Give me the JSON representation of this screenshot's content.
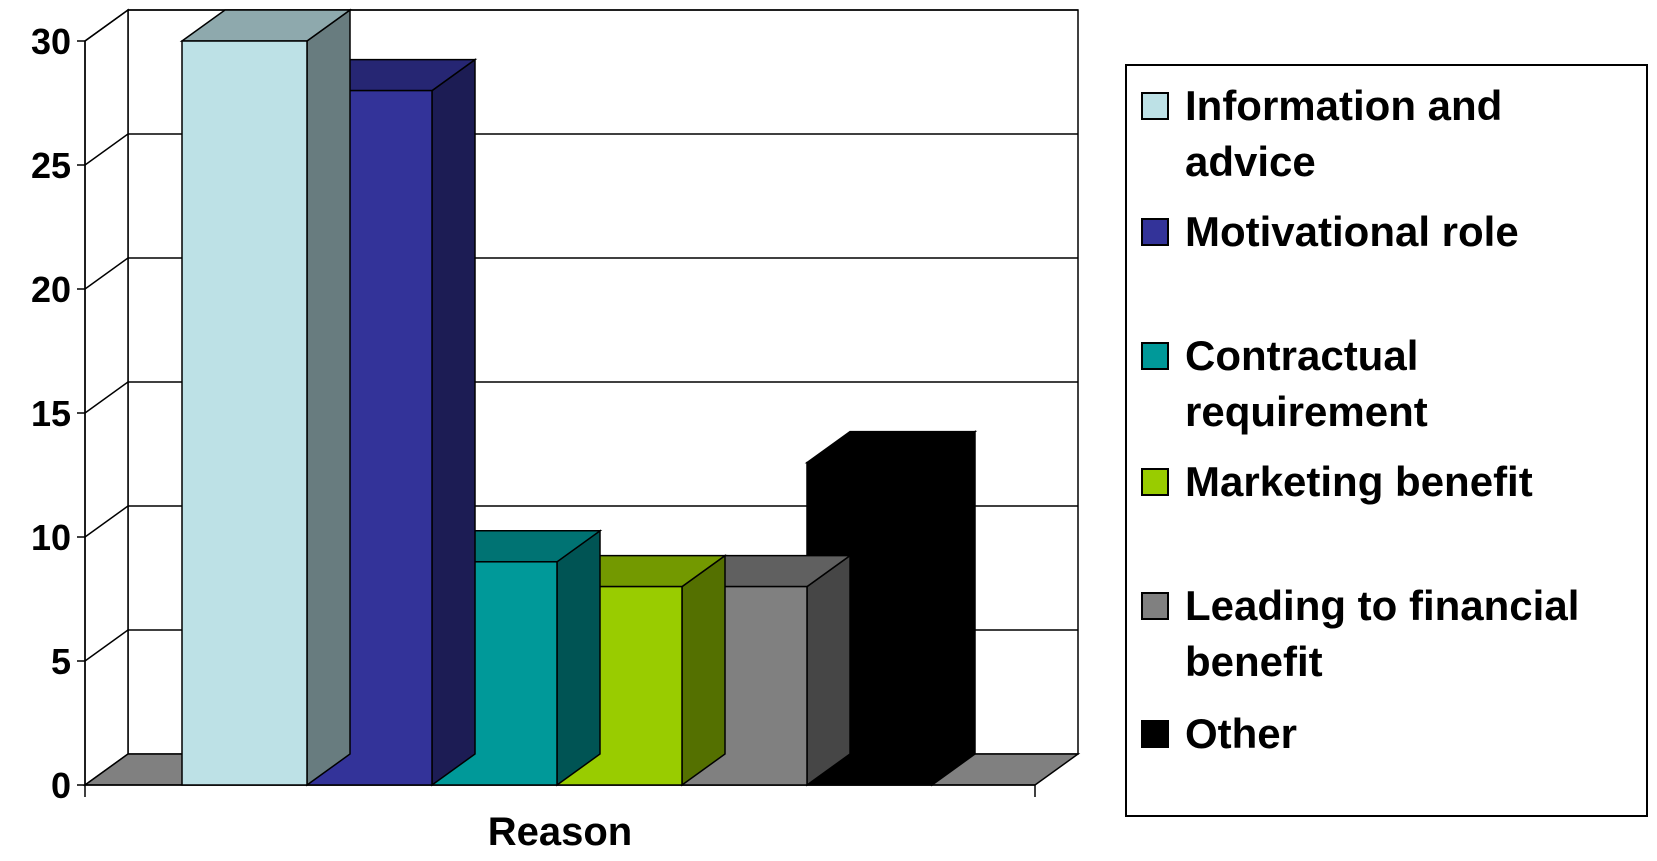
{
  "chart_data": {
    "type": "bar",
    "title": "",
    "xlabel": "Reason",
    "ylabel": "",
    "ylim": [
      0,
      30
    ],
    "yticks": [
      "0",
      "5",
      "10",
      "15",
      "20",
      "25",
      "30"
    ],
    "grid": true,
    "legend_position": "right",
    "three_d": true,
    "series": [
      {
        "name": "Information and advice",
        "value": 30,
        "color": "#BDE1E6"
      },
      {
        "name": "Motivational role",
        "value": 28,
        "color": "#333399"
      },
      {
        "name": "Contractual requirement",
        "value": 9,
        "color": "#009999"
      },
      {
        "name": "Marketing benefit",
        "value": 8,
        "color": "#99CC00"
      },
      {
        "name": "Leading to financial benefit",
        "value": 8,
        "color": "#808080"
      },
      {
        "name": "Other",
        "value": 13,
        "color": "#000000"
      }
    ]
  }
}
